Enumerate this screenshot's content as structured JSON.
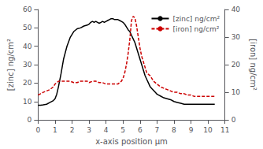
{
  "chart_data": {
    "type": "line",
    "xlabel": "x-axis position µm",
    "ylabel": "[zinc] ng/cm²",
    "y2label": "[iron] ng/cm²",
    "xlim": [
      0,
      11
    ],
    "xticks": [
      0,
      1,
      2,
      3,
      4,
      5,
      6,
      7,
      8,
      9,
      10,
      11
    ],
    "ylim": [
      0,
      60
    ],
    "yticks": [
      0,
      10,
      20,
      30,
      40,
      50,
      60
    ],
    "y2lim": [
      0,
      40
    ],
    "y2ticks": [
      0,
      10,
      20,
      30,
      40
    ],
    "grid": false,
    "legend": "upper right",
    "series": [
      {
        "name": "[zinc] ng/cm²",
        "color": "#000000",
        "line_style": "solid",
        "x": [
          0,
          0.15,
          0.3,
          0.5,
          0.7,
          0.9,
          1.0,
          1.1,
          1.2,
          1.35,
          1.5,
          1.7,
          1.9,
          2.1,
          2.3,
          2.5,
          2.7,
          2.9,
          3.0,
          3.1,
          3.2,
          3.3,
          3.4,
          3.5,
          3.6,
          3.7,
          3.8,
          3.9,
          4.0,
          4.1,
          4.2,
          4.3,
          4.4,
          4.5,
          4.6,
          4.7,
          4.8,
          4.9,
          5.0,
          5.1,
          5.2,
          5.3,
          5.4,
          5.5,
          5.6,
          5.7,
          5.8,
          5.9,
          6.0,
          6.1,
          6.2,
          6.3,
          6.4,
          6.5,
          6.6,
          6.7,
          6.8,
          6.9,
          7.0,
          7.1,
          7.2,
          7.4,
          7.6,
          7.8,
          8.0,
          8.2,
          8.4,
          8.6,
          8.8,
          9.0,
          9.2,
          9.4,
          9.6,
          9.8,
          10.0,
          10.2,
          10.4
        ],
        "values": [
          8,
          8,
          8.2,
          8.5,
          9.5,
          10.5,
          11.5,
          14,
          18,
          25,
          33,
          40,
          45,
          48,
          49.5,
          50,
          51,
          51.5,
          52,
          53,
          53.5,
          53,
          53.5,
          53,
          52.5,
          53,
          53.5,
          53,
          53.5,
          54,
          54.5,
          55,
          55,
          54.5,
          54.5,
          54.5,
          54,
          53.5,
          53,
          52,
          50.5,
          49,
          48,
          46,
          44,
          42,
          39,
          36,
          33,
          30,
          27,
          24,
          22,
          20,
          18,
          17,
          16,
          15,
          14,
          13.5,
          13,
          12,
          11.5,
          11,
          10,
          9.5,
          9,
          8.5,
          8.5,
          8.5,
          8.5,
          8.5,
          8.5,
          8.5,
          8.5,
          8.5,
          8.5
        ]
      },
      {
        "name": "[iron] ng/cm²",
        "color": "#cc0000",
        "line_style": "dashed",
        "axis": "y2",
        "x": [
          0,
          0.15,
          0.3,
          0.5,
          0.7,
          0.9,
          1.0,
          1.1,
          1.2,
          1.35,
          1.5,
          1.7,
          1.9,
          2.1,
          2.3,
          2.5,
          2.7,
          2.9,
          3.0,
          3.2,
          3.4,
          3.6,
          3.8,
          4.0,
          4.2,
          4.4,
          4.6,
          4.7,
          4.8,
          4.9,
          5.0,
          5.1,
          5.2,
          5.3,
          5.4,
          5.5,
          5.6,
          5.7,
          5.8,
          5.9,
          6.0,
          6.1,
          6.2,
          6.3,
          6.4,
          6.5,
          6.6,
          6.7,
          6.8,
          7.0,
          7.2,
          7.4,
          7.6,
          7.8,
          8.0,
          8.2,
          8.4,
          8.6,
          8.8,
          9.0,
          9.2,
          9.4,
          9.6,
          9.8,
          10.0,
          10.2,
          10.4
        ],
        "values": [
          9,
          9.5,
          10,
          10.5,
          11,
          12,
          13,
          13.5,
          14,
          14,
          14,
          14,
          14,
          13.5,
          13.5,
          14,
          14,
          14,
          13.5,
          14,
          14,
          13.5,
          13.5,
          13,
          13,
          13,
          13,
          13,
          13.5,
          14,
          15,
          17,
          20,
          24,
          29,
          36,
          37.5,
          37,
          34,
          30,
          26,
          23,
          21,
          19,
          17,
          16.5,
          16,
          15,
          14,
          13,
          12,
          11.5,
          11,
          10.5,
          10,
          10,
          9.5,
          9.5,
          9,
          9,
          8.5,
          8.5,
          8.5,
          8.5,
          8.5,
          8.5,
          8.5
        ]
      }
    ]
  }
}
